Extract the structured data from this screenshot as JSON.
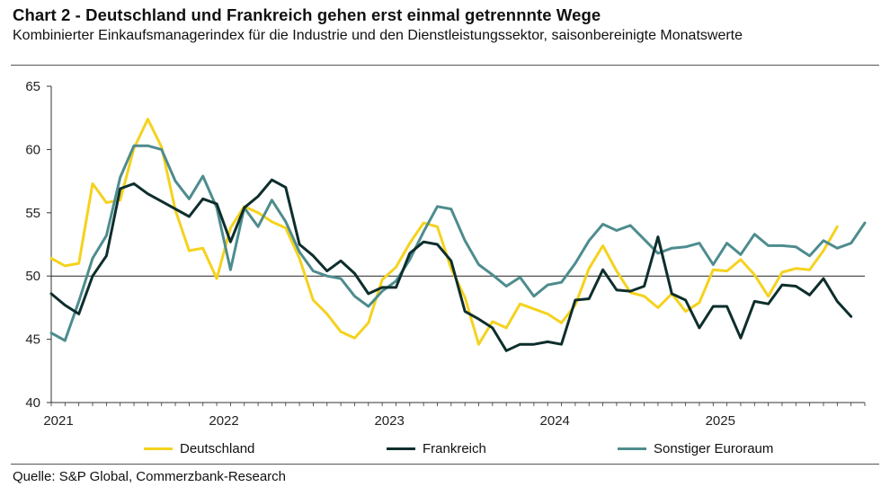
{
  "header": {
    "title": "Chart 2 - Deutschland und Frankreich gehen erst einmal getrennnte Wege",
    "subtitle": "Kombinierter Einkaufsmanagerindex für die Industrie und den Dienstleistungssektor, saisonbereinigte Monatswerte"
  },
  "footer": {
    "source": "Quelle: S&P Global, Commerzbank-Research"
  },
  "chart_data": {
    "type": "line",
    "title": "Chart 2 - Deutschland und Frankreich gehen erst einmal getrennnte Wege",
    "subtitle": "Kombinierter Einkaufsmanagerindex für die Industrie und den Dienstleistungssektor, saisonbereinigte Monatswerte",
    "x_start": "2021-01",
    "x_tick_labels": [
      "2021",
      "2022",
      "2023",
      "2024",
      "2025"
    ],
    "ylim": [
      40,
      65
    ],
    "y_ticks": [
      40,
      45,
      50,
      55,
      60,
      65
    ],
    "reference_line": 50,
    "grid": false,
    "legend_position": "bottom",
    "series": [
      {
        "name": "Deutschland",
        "color": "#f5d21e",
        "values": [
          51.4,
          50.8,
          51.0,
          57.3,
          55.8,
          56.0,
          60.1,
          62.4,
          60.2,
          55.2,
          52.0,
          52.2,
          49.8,
          53.8,
          55.5,
          55.0,
          54.3,
          53.8,
          51.4,
          48.1,
          47.0,
          45.6,
          45.1,
          46.3,
          49.7,
          50.7,
          52.6,
          54.2,
          53.9,
          50.6,
          48.3,
          44.6,
          46.4,
          45.9,
          47.8,
          47.4,
          47.0,
          46.3,
          47.7,
          50.6,
          52.4,
          50.4,
          48.7,
          48.4,
          47.5,
          48.6,
          47.2,
          47.9,
          50.5,
          50.4,
          51.3,
          50.1,
          48.4,
          50.3,
          50.6,
          50.5,
          52.0,
          53.9
        ]
      },
      {
        "name": "Frankreich",
        "color": "#0d2e2c",
        "values": [
          48.6,
          47.7,
          47.0,
          50.0,
          51.6,
          56.9,
          57.3,
          56.5,
          55.9,
          55.3,
          54.7,
          56.1,
          55.7,
          52.7,
          55.4,
          56.3,
          57.6,
          57.0,
          52.5,
          51.6,
          50.4,
          51.2,
          50.2,
          48.6,
          49.1,
          49.1,
          51.8,
          52.7,
          52.5,
          51.2,
          47.2,
          46.6,
          45.9,
          44.1,
          44.6,
          44.6,
          44.8,
          44.6,
          48.1,
          48.2,
          50.5,
          48.9,
          48.8,
          49.2,
          53.1,
          48.6,
          48.1,
          45.9,
          47.6,
          47.6,
          45.1,
          48.0,
          47.8,
          49.3,
          49.2,
          48.5,
          49.8,
          48.0,
          46.8
        ]
      },
      {
        "name": "Sonstiger Euroraum",
        "color": "#4e8c8e",
        "values": [
          45.5,
          44.9,
          48.0,
          51.4,
          53.2,
          57.8,
          60.3,
          60.3,
          60.0,
          57.5,
          56.1,
          57.9,
          55.4,
          50.5,
          55.4,
          53.9,
          56.0,
          54.3,
          51.9,
          50.4,
          50.0,
          49.8,
          48.4,
          47.6,
          48.8,
          49.6,
          51.3,
          53.5,
          55.5,
          55.3,
          52.8,
          50.9,
          50.1,
          49.2,
          49.9,
          48.4,
          49.3,
          49.5,
          51.0,
          52.8,
          54.1,
          53.6,
          54.0,
          52.9,
          51.8,
          52.2,
          52.3,
          52.6,
          50.9,
          52.6,
          51.7,
          53.3,
          52.4,
          52.4,
          52.3,
          51.6,
          52.8,
          52.2,
          52.6,
          54.2
        ]
      }
    ]
  }
}
